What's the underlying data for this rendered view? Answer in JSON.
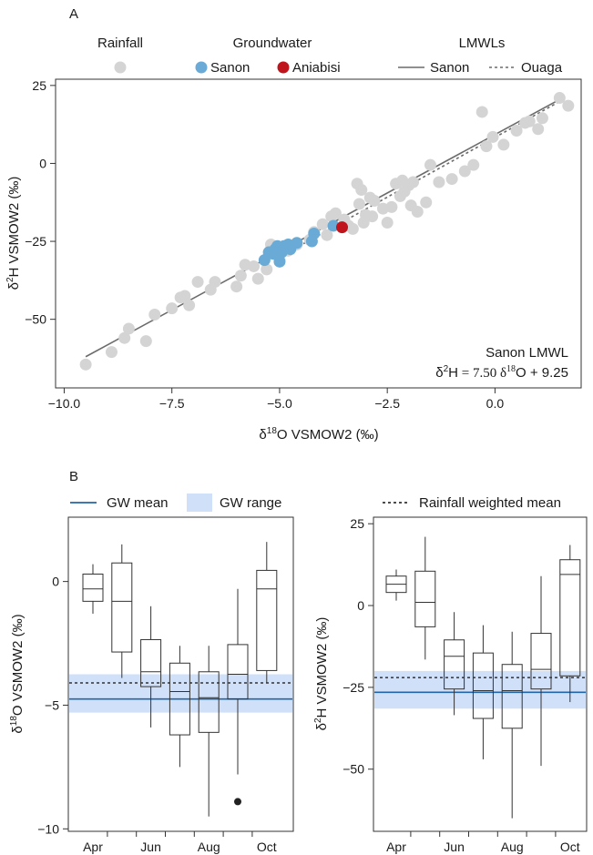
{
  "colors": {
    "rainfall": "#d4d4d4",
    "sanon_gw": "#6aaad6",
    "aniabisi_gw": "#c0141c",
    "lmwl": "#6b6b6b",
    "gw_mean": "#2266aa",
    "gw_range": "#cfe0f8",
    "box": "#333333"
  },
  "panelA": {
    "label": "A",
    "legend": {
      "rainfall_header": "Rainfall",
      "groundwater_header": "Groundwater",
      "lmwl_header": "LMWLs",
      "sanon": "Sanon",
      "aniabisi": "Aniabisi",
      "lmwl_sanon": "Sanon",
      "lmwl_ouaga": "Ouaga"
    },
    "annotation": {
      "title": "Sanon LMWL",
      "eq_lhs_base": "δ",
      "eq_lhs_sup": "2",
      "eq_lhs_el": "H",
      "eq_rhs": " = 7.50 δ",
      "eq_rhs_sup": "18",
      "eq_rhs_tail": "O + 9.25"
    },
    "xlabel": {
      "pre": "δ",
      "sup": "18",
      "post": "O VSMOW2 (‰)"
    },
    "ylabel": {
      "pre": "δ",
      "sup": "2",
      "post": "H VSMOW2 (‰)"
    }
  },
  "panelB": {
    "label": "B",
    "legend": {
      "gw_mean": "GW mean",
      "gw_range": "GW range",
      "rain_mean": "Rainfall weighted mean"
    },
    "left_ylabel": {
      "pre": "δ",
      "sup": "18",
      "post": "O VSMOW2 (‰)"
    },
    "right_ylabel": {
      "pre": "δ",
      "sup": "2",
      "post": "H VSMOW2 (‰)"
    }
  },
  "chart_data": [
    {
      "type": "scatter",
      "xlim": [
        -10.2,
        2.0
      ],
      "ylim": [
        -72,
        27
      ],
      "xticks": [
        -10.0,
        -7.5,
        -5.0,
        -2.5,
        0.0
      ],
      "xtick_labels": [
        "−10.0",
        "−7.5",
        "−5.0",
        "−2.5",
        "0.0"
      ],
      "yticks": [
        -50,
        -25,
        0,
        25
      ],
      "ytick_labels": [
        "−50",
        "−25",
        "0",
        "25"
      ],
      "lines": [
        {
          "name": "Sanon",
          "slope": 7.5,
          "intercept": 9.25,
          "x_range": [
            -9.5,
            1.6
          ],
          "dash": "solid"
        },
        {
          "name": "Ouaga",
          "slope": 7.67,
          "intercept": 8.35,
          "x_range": [
            -5.0,
            1.6
          ],
          "dash": "dashed"
        }
      ],
      "series": [
        {
          "name": "Rainfall",
          "points": [
            [
              -9.5,
              -64.5
            ],
            [
              -8.9,
              -60.5
            ],
            [
              -8.6,
              -56
            ],
            [
              -8.5,
              -53
            ],
            [
              -8.1,
              -57
            ],
            [
              -7.9,
              -48.5
            ],
            [
              -7.5,
              -46.5
            ],
            [
              -7.3,
              -43
            ],
            [
              -7.2,
              -42.5
            ],
            [
              -7.1,
              -45.5
            ],
            [
              -6.9,
              -38
            ],
            [
              -6.6,
              -40.5
            ],
            [
              -6.5,
              -38
            ],
            [
              -6.0,
              -39.5
            ],
            [
              -5.9,
              -36
            ],
            [
              -5.8,
              -32.5
            ],
            [
              -5.6,
              -33
            ],
            [
              -5.5,
              -37
            ],
            [
              -5.3,
              -34
            ],
            [
              -5.2,
              -26
            ],
            [
              -5.1,
              -29
            ],
            [
              -5.0,
              -31
            ],
            [
              -4.8,
              -28
            ],
            [
              -4.6,
              -26
            ],
            [
              -4.3,
              -24.5
            ],
            [
              -4.2,
              -22
            ],
            [
              -4.0,
              -19.5
            ],
            [
              -3.9,
              -23
            ],
            [
              -3.8,
              -17
            ],
            [
              -3.7,
              -16
            ],
            [
              -3.5,
              -18
            ],
            [
              -3.4,
              -20
            ],
            [
              -3.3,
              -21
            ],
            [
              -3.2,
              -6.5
            ],
            [
              -3.15,
              -13
            ],
            [
              -3.1,
              -8.5
            ],
            [
              -3.05,
              -19
            ],
            [
              -3.0,
              -16.5
            ],
            [
              -2.9,
              -11
            ],
            [
              -2.85,
              -17
            ],
            [
              -2.8,
              -12
            ],
            [
              -2.6,
              -14.5
            ],
            [
              -2.5,
              -19
            ],
            [
              -2.4,
              -14
            ],
            [
              -2.3,
              -6.5
            ],
            [
              -2.2,
              -10.5
            ],
            [
              -2.15,
              -5.5
            ],
            [
              -2.1,
              -9
            ],
            [
              -2.0,
              -7
            ],
            [
              -1.95,
              -13.5
            ],
            [
              -1.9,
              -6
            ],
            [
              -1.8,
              -15.5
            ],
            [
              -1.6,
              -12.5
            ],
            [
              -1.5,
              -0.5
            ],
            [
              -1.3,
              -6
            ],
            [
              -1.0,
              -5
            ],
            [
              -0.7,
              -2.5
            ],
            [
              -0.5,
              -0.5
            ],
            [
              -0.3,
              16.5
            ],
            [
              -0.2,
              5.5
            ],
            [
              -0.05,
              8.5
            ],
            [
              0.2,
              6
            ],
            [
              0.5,
              10.5
            ],
            [
              0.7,
              13
            ],
            [
              0.8,
              13.5
            ],
            [
              1.0,
              11
            ],
            [
              1.1,
              14.5
            ],
            [
              1.5,
              21
            ],
            [
              1.7,
              18.5
            ]
          ]
        },
        {
          "name": "Sanon",
          "points": [
            [
              -5.35,
              -31
            ],
            [
              -5.25,
              -28.5
            ],
            [
              -5.15,
              -29
            ],
            [
              -5.1,
              -27.5
            ],
            [
              -5.05,
              -26.5
            ],
            [
              -5.0,
              -31.5
            ],
            [
              -4.95,
              -28.5
            ],
            [
              -4.9,
              -26.5
            ],
            [
              -4.8,
              -26
            ],
            [
              -4.75,
              -27.5
            ],
            [
              -4.6,
              -25.5
            ],
            [
              -4.25,
              -25
            ],
            [
              -4.2,
              -22.5
            ],
            [
              -3.75,
              -20
            ]
          ]
        },
        {
          "name": "Aniabisi",
          "points": [
            [
              -3.55,
              -20.5
            ]
          ]
        }
      ]
    },
    {
      "type": "box",
      "categories": [
        "Apr",
        "May",
        "Jun",
        "Jul",
        "Aug",
        "Sep",
        "Oct"
      ],
      "tick_labels": [
        "Apr",
        "Jun",
        "Aug",
        "Oct"
      ],
      "ylim": [
        -10.1,
        2.6
      ],
      "yticks": [
        0,
        -5,
        -10
      ],
      "ytick_labels": [
        "0",
        "−5",
        "−10"
      ],
      "gw_mean": -4.75,
      "gw_range": [
        -5.3,
        -3.75
      ],
      "rain_weighted_mean": -4.1,
      "boxes": [
        {
          "month": "Apr",
          "whisker_low": -1.3,
          "q1": -0.8,
          "median": -0.3,
          "q3": 0.3,
          "whisker_high": 0.7
        },
        {
          "month": "May",
          "whisker_low": -3.9,
          "q1": -2.85,
          "median": -0.8,
          "q3": 0.75,
          "whisker_high": 1.5
        },
        {
          "month": "Jun",
          "whisker_low": -5.9,
          "q1": -4.25,
          "median": -3.65,
          "q3": -2.35,
          "whisker_high": -1.0
        },
        {
          "month": "Jul",
          "whisker_low": -7.5,
          "q1": -6.2,
          "median": -4.45,
          "q3": -3.3,
          "whisker_high": -2.6
        },
        {
          "month": "Aug",
          "whisker_low": -9.5,
          "q1": -6.1,
          "median": -4.7,
          "q3": -3.65,
          "whisker_high": -2.6
        },
        {
          "month": "Sep",
          "whisker_low": -7.8,
          "q1": -4.75,
          "median": -3.75,
          "q3": -2.55,
          "whisker_high": -0.3,
          "outliers": [
            -8.9
          ]
        },
        {
          "month": "Oct",
          "whisker_low": -4.1,
          "q1": -3.6,
          "median": -0.3,
          "q3": 0.45,
          "whisker_high": 1.6
        }
      ]
    },
    {
      "type": "box",
      "categories": [
        "Apr",
        "May",
        "Jun",
        "Jul",
        "Aug",
        "Sep",
        "Oct"
      ],
      "tick_labels": [
        "Apr",
        "Jun",
        "Aug",
        "Oct"
      ],
      "ylim": [
        -69,
        27
      ],
      "yticks": [
        25,
        0,
        -25,
        -50
      ],
      "ytick_labels": [
        "25",
        "0",
        "−25",
        "−50"
      ],
      "gw_mean": -26.5,
      "gw_range": [
        -31.5,
        -20
      ],
      "rain_weighted_mean": -22,
      "boxes": [
        {
          "month": "Apr",
          "whisker_low": 1.5,
          "q1": 4,
          "median": 6.5,
          "q3": 9,
          "whisker_high": 11
        },
        {
          "month": "May",
          "whisker_low": -16.5,
          "q1": -6.5,
          "median": 1,
          "q3": 10.5,
          "whisker_high": 21
        },
        {
          "month": "Jun",
          "whisker_low": -33.5,
          "q1": -25.5,
          "median": -15.5,
          "q3": -10.5,
          "whisker_high": -2
        },
        {
          "month": "Jul",
          "whisker_low": -47,
          "q1": -34.5,
          "median": -26,
          "q3": -14.5,
          "whisker_high": -6
        },
        {
          "month": "Aug",
          "whisker_low": -65,
          "q1": -37.5,
          "median": -26,
          "q3": -18,
          "whisker_high": -8
        },
        {
          "month": "Sep",
          "whisker_low": -49,
          "q1": -25.5,
          "median": -19.5,
          "q3": -8.5,
          "whisker_high": 9
        },
        {
          "month": "Oct",
          "whisker_low": -29.5,
          "q1": -21.5,
          "median": 9.5,
          "q3": 14,
          "whisker_high": 18.5
        }
      ]
    }
  ]
}
